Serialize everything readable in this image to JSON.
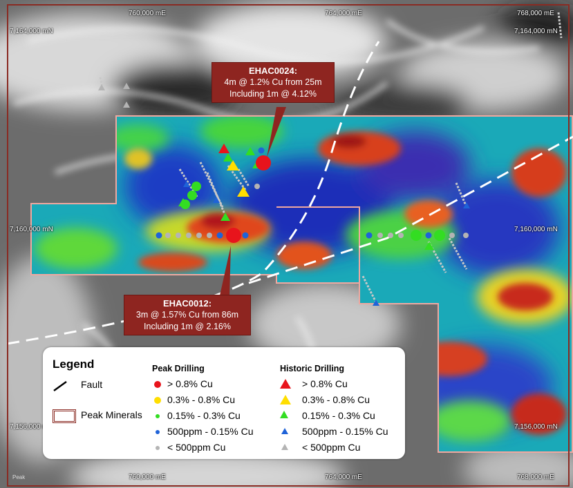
{
  "colors": {
    "red": "#e8141c",
    "yellow": "#ffde00",
    "green": "#33dd22",
    "blue": "#1f63d8",
    "grey": "#b4b4b4",
    "callout_bg": "#8e2520",
    "tenement_outline": "#f0a8a0",
    "frame": "#8a2a22"
  },
  "map": {
    "easting_labels": {
      "top": [
        "760,000 mE",
        "764,000 mE",
        "768,000 mE"
      ],
      "bottom": [
        "760,000 mE",
        "764,000 mE",
        "768,000 mE"
      ]
    },
    "northing_labels": {
      "left": [
        "7,164,000 mN",
        "7,160,000 mN",
        "7,156,000 mN"
      ],
      "right": [
        "7,164,000 mN",
        "7,160,000 mN",
        "7,156,000 mN"
      ]
    },
    "logo_text": "Peak"
  },
  "callouts": [
    {
      "id": "EHAC0024",
      "title": "EHAC0024:",
      "line1": "4m @ 1.2% Cu from 25m",
      "line2": "Including 1m @ 4.12%"
    },
    {
      "id": "EHAC0012",
      "title": "EHAC0012:",
      "line1": "3m @ 1.57% Cu from 86m",
      "line2": "Including 1m @ 2.16%"
    }
  ],
  "legend": {
    "title": "Legend",
    "fault_label": "Fault",
    "tenement_label": "Peak Minerals",
    "peak_heading": "Peak Drilling",
    "historic_heading": "Historic Drilling",
    "peak_items": [
      {
        "label": "> 0.8% Cu",
        "color": "red"
      },
      {
        "label": "0.3% - 0.8% Cu",
        "color": "yellow"
      },
      {
        "label": "0.15% - 0.3% Cu",
        "color": "green"
      },
      {
        "label": "500ppm - 0.15% Cu",
        "color": "blue"
      },
      {
        "label": "< 500ppm Cu",
        "color": "grey"
      }
    ],
    "historic_items": [
      {
        "label": "> 0.8% Cu",
        "color": "red"
      },
      {
        "label": "0.3% - 0.8% Cu",
        "color": "yellow"
      },
      {
        "label": "0.15% - 0.3% Cu",
        "color": "green"
      },
      {
        "label": "500ppm - 0.15% Cu",
        "color": "blue"
      },
      {
        "label": "< 500ppm Cu",
        "color": "grey"
      }
    ]
  }
}
